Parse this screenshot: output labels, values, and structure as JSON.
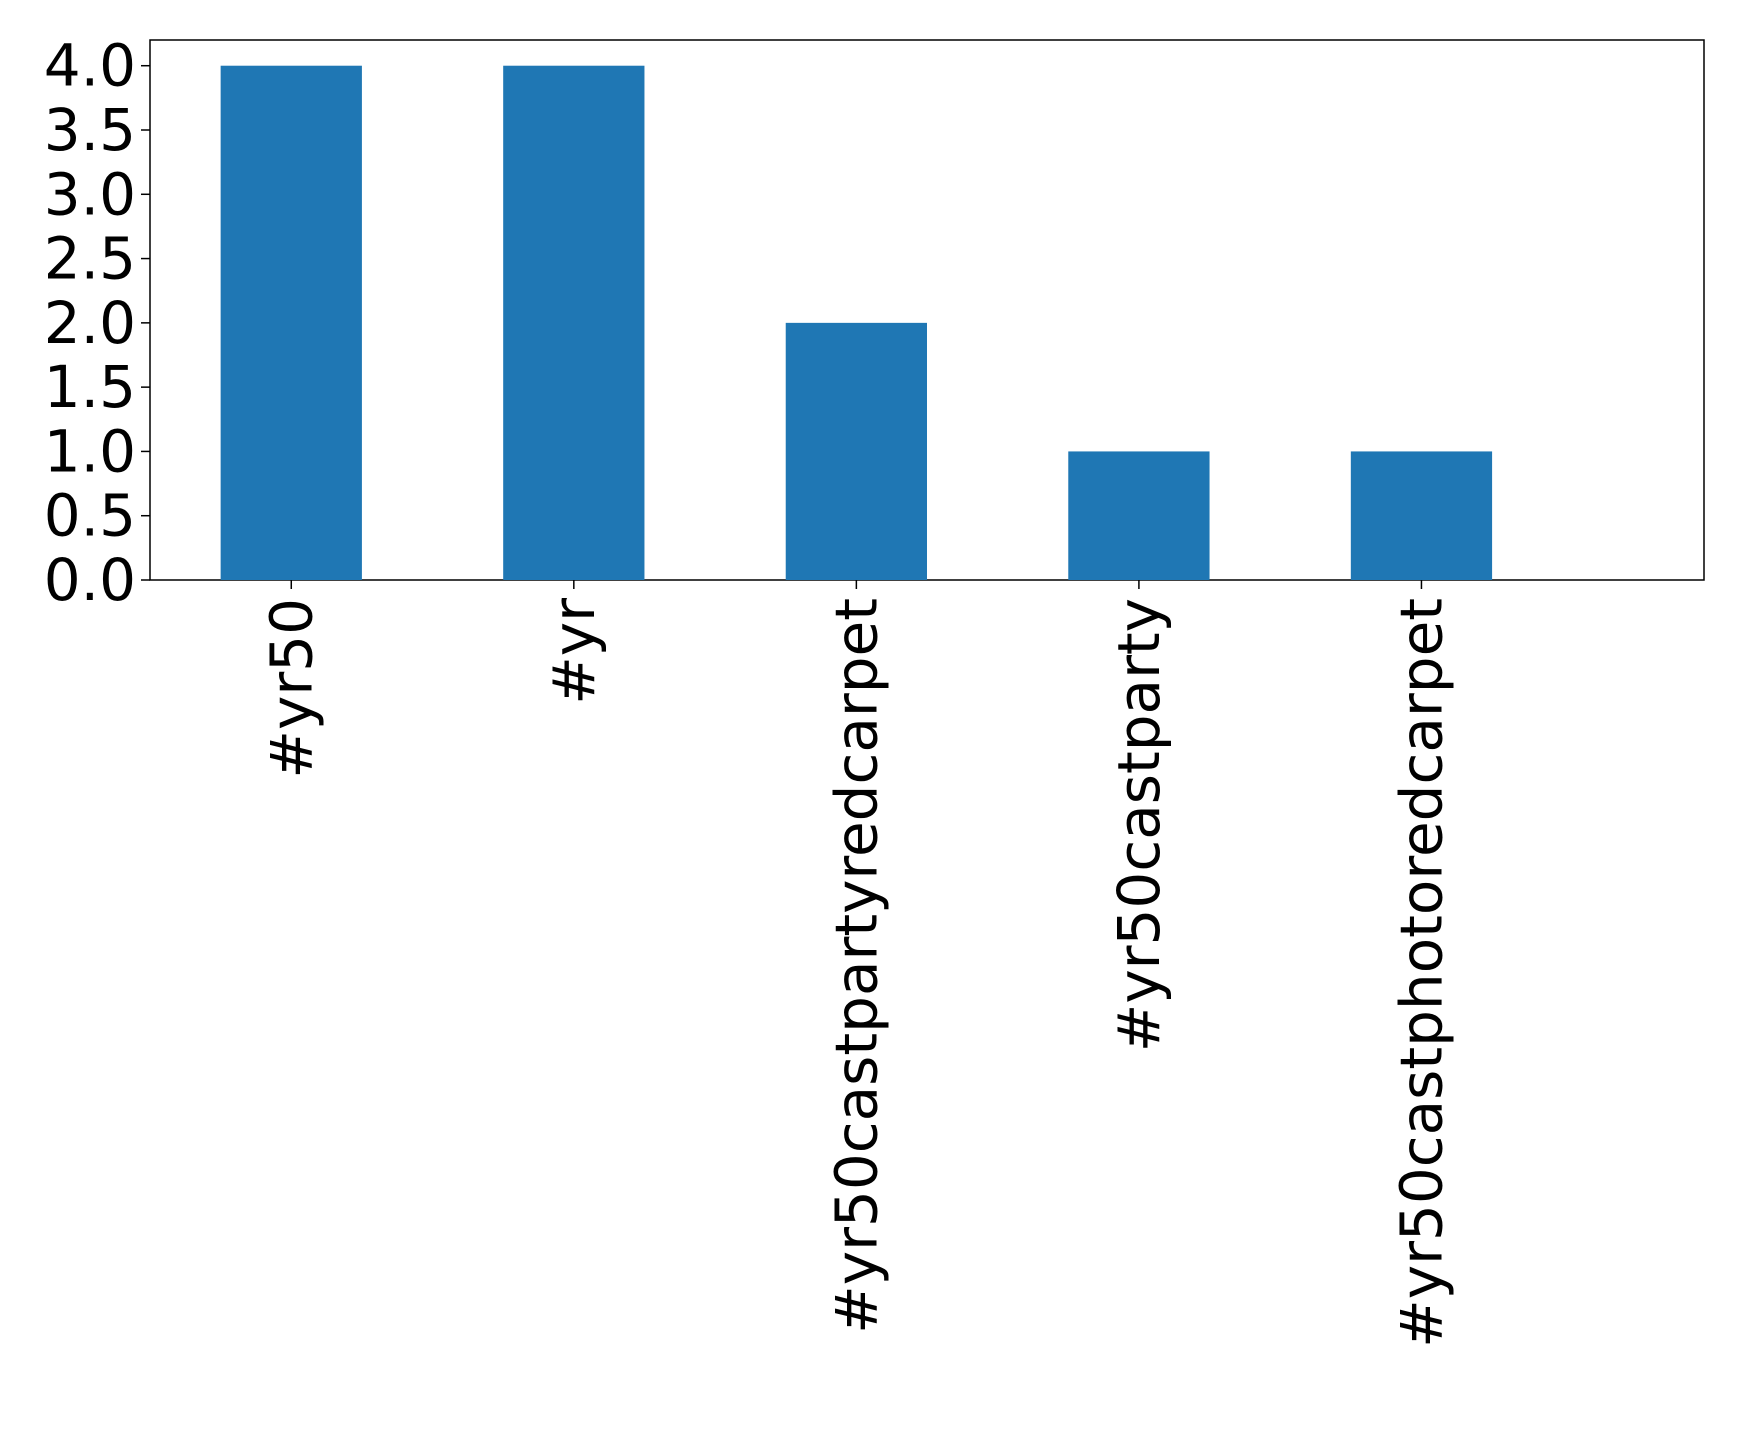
{
  "chart_data": {
    "type": "bar",
    "categories": [
      "#yr50",
      "#yr",
      "#yr50castpartyredcarpet",
      "#yr50castparty",
      "#yr50castphotoredcarpet"
    ],
    "values": [
      4,
      4,
      2,
      1,
      1
    ],
    "title": "",
    "xlabel": "",
    "ylabel": "",
    "ylim": [
      0,
      4.2
    ],
    "yticks": [
      "0.0",
      "0.5",
      "1.0",
      "1.5",
      "2.0",
      "2.5",
      "3.0",
      "3.5",
      "4.0"
    ],
    "grid": false,
    "legend": "none",
    "bar_color": "#1f77b4",
    "x_tick_rotation": "vertical"
  }
}
